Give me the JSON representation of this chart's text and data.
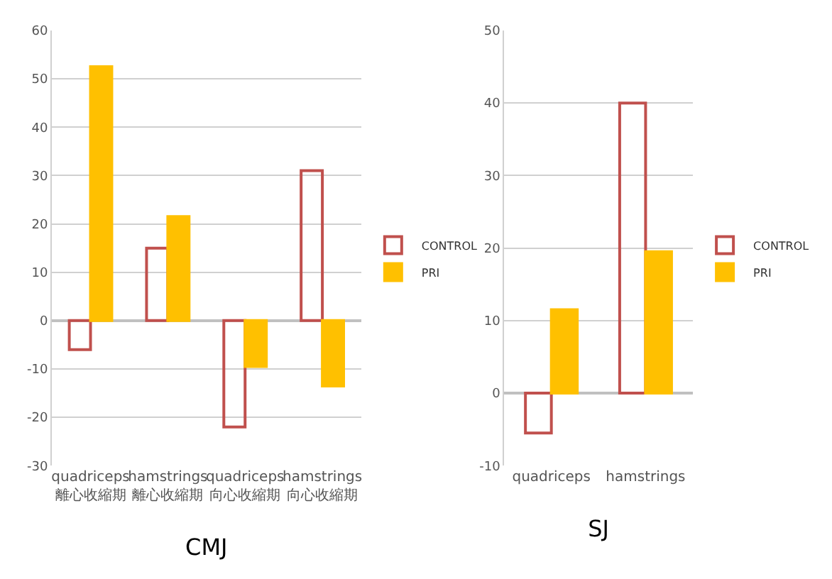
{
  "chart_data": [
    {
      "type": "bar",
      "xlabel": "CMJ",
      "categories": [
        "quadriceps\n離心收縮期",
        "hamstrings\n離心收縮期",
        "quadriceps\n向心收縮期",
        "hamstrings\n向心收縮期"
      ],
      "ylim": [
        -30,
        60
      ],
      "yticks": [
        -30,
        -20,
        -10,
        0,
        10,
        20,
        30,
        40,
        50,
        60
      ],
      "grid": "y",
      "legend": "right",
      "series": [
        {
          "name": "CONTROL",
          "color": "#c0504d",
          "values": [
            -6,
            15,
            -22,
            31
          ]
        },
        {
          "name": "PRI",
          "color": "#ffc000",
          "values": [
            52.5,
            21.5,
            -9.5,
            -13.5
          ]
        }
      ]
    },
    {
      "type": "bar",
      "xlabel": "SJ",
      "categories": [
        "quadriceps",
        "hamstrings"
      ],
      "ylim": [
        -10,
        50
      ],
      "yticks": [
        -10,
        0,
        10,
        20,
        30,
        40,
        50
      ],
      "grid": "y",
      "legend": "right",
      "series": [
        {
          "name": "CONTROL",
          "color": "#c0504d",
          "values": [
            -5.5,
            40
          ]
        },
        {
          "name": "PRI",
          "color": "#ffc000",
          "values": [
            11.5,
            19.5
          ]
        }
      ]
    }
  ]
}
